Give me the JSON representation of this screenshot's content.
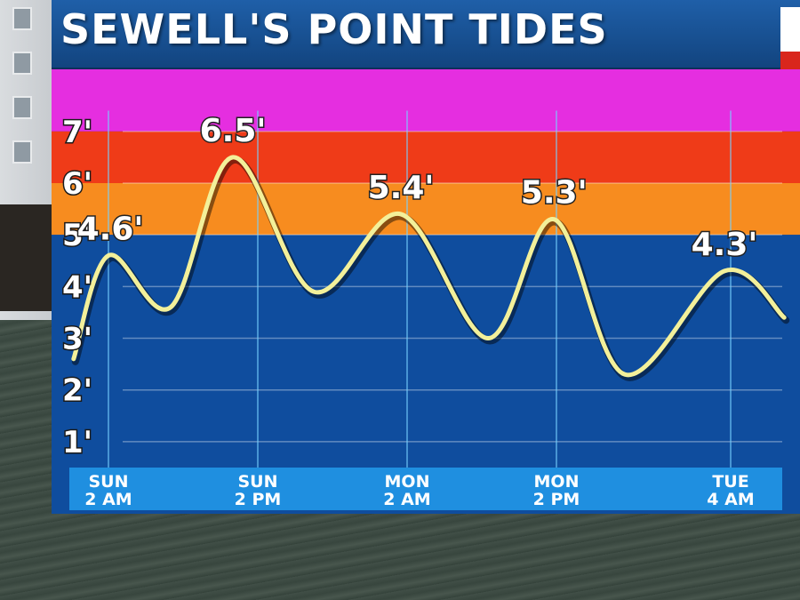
{
  "header": {
    "title": "SEWELL'S POINT TIDES"
  },
  "colors": {
    "band_7plus": "#e52ee0",
    "band_6_7": "#ef3b18",
    "band_5_6": "#f78c1f",
    "band_below_5": "#0f4d9e",
    "curve": "#f3f09a",
    "axis_bar": "#1f8fe0"
  },
  "chart_data": {
    "type": "line",
    "title": "SEWELL'S POINT TIDES",
    "xlabel": "",
    "ylabel": "",
    "ylim": [
      0.5,
      8.2
    ],
    "y_ticks": [
      "1'",
      "2'",
      "3'",
      "4'",
      "5'",
      "6'",
      "7'"
    ],
    "y_tick_values": [
      1,
      2,
      3,
      4,
      5,
      6,
      7
    ],
    "x_ticks": [
      {
        "day": "SUN",
        "time": "2 AM",
        "hour": 2
      },
      {
        "day": "SUN",
        "time": "2 PM",
        "hour": 14
      },
      {
        "day": "MON",
        "time": "2 AM",
        "hour": 26
      },
      {
        "day": "MON",
        "time": "2 PM",
        "hour": 38
      },
      {
        "day": "TUE",
        "time": "4 AM",
        "hour": 52
      }
    ],
    "xlim": [
      -2,
      57
    ],
    "grid": true,
    "bands": [
      {
        "from": 7.0,
        "to": 8.2,
        "color": "#e52ee0"
      },
      {
        "from": 6.0,
        "to": 7.0,
        "color": "#ef3b18"
      },
      {
        "from": 5.0,
        "to": 6.0,
        "color": "#f78c1f"
      },
      {
        "from": 0.5,
        "to": 5.0,
        "color": "#0f4d9e"
      }
    ],
    "series": [
      {
        "x": [
          -0.8,
          2,
          7,
          12,
          18.5,
          25.5,
          32.5,
          37.8,
          43.5,
          51.5,
          56.3
        ],
        "y": [
          2.6,
          4.6,
          3.6,
          6.5,
          3.9,
          5.4,
          3.0,
          5.3,
          2.3,
          4.3,
          3.4
        ]
      }
    ],
    "annotations": [
      {
        "text": "4.6'",
        "x": 2,
        "y": 4.6
      },
      {
        "text": "6.5'",
        "x": 12,
        "y": 6.5
      },
      {
        "text": "5.4'",
        "x": 25.5,
        "y": 5.4
      },
      {
        "text": "5.3'",
        "x": 37.8,
        "y": 5.3
      },
      {
        "text": "4.3'",
        "x": 51.5,
        "y": 4.3
      }
    ]
  }
}
